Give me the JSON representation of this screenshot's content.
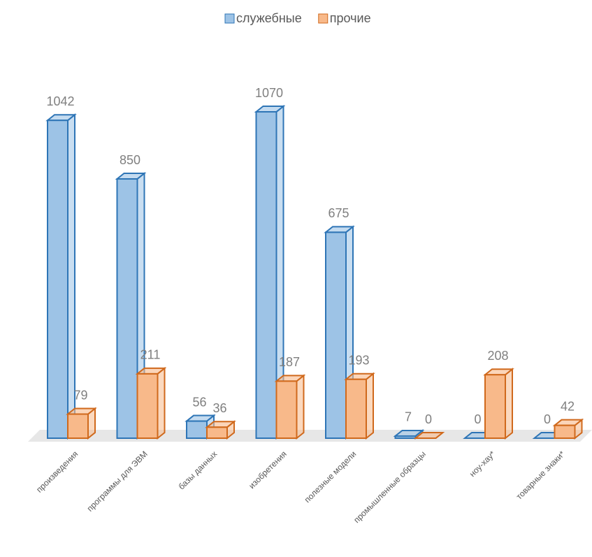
{
  "chart_data": {
    "type": "bar3d",
    "categories": [
      "произведения",
      "программы для ЭВМ",
      "базы данных",
      "изобретения",
      "полезные модели",
      "промышленные образцы",
      "ноу-хау*",
      "товарные знаки*"
    ],
    "series": [
      {
        "name": "служебные",
        "color": "#9dc3e6",
        "stroke": "#2e75b6",
        "values": [
          1042,
          850,
          56,
          1070,
          675,
          7,
          0,
          0
        ]
      },
      {
        "name": "прочие",
        "color": "#f8b98a",
        "stroke": "#d0691c",
        "values": [
          79,
          211,
          36,
          187,
          193,
          0,
          208,
          42
        ]
      }
    ],
    "legend": "top"
  }
}
